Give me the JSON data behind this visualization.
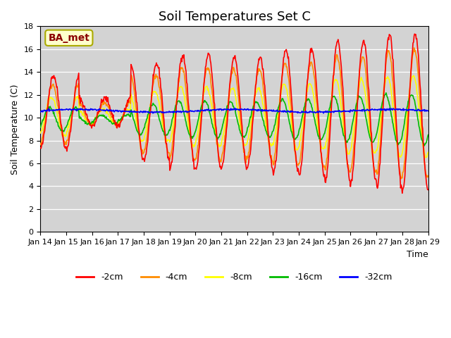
{
  "title": "Soil Temperatures Set C",
  "xlabel": "Time",
  "ylabel": "Soil Temperature (C)",
  "ylim": [
    0,
    18
  ],
  "yticks": [
    0,
    2,
    4,
    6,
    8,
    10,
    12,
    14,
    16,
    18
  ],
  "x_labels": [
    "Jan 14",
    "Jan 15",
    "Jan 16",
    "Jan 17",
    "Jan 18",
    "Jan 19",
    "Jan 20",
    "Jan 21",
    "Jan 22",
    "Jan 23",
    "Jan 24",
    "Jan 25",
    "Jan 26",
    "Jan 27",
    "Jan 28",
    "Jan 29"
  ],
  "legend_labels": [
    "-2cm",
    "-4cm",
    "-8cm",
    "-16cm",
    "-32cm"
  ],
  "legend_colors": [
    "#ff0000",
    "#ff8c00",
    "#ffff00",
    "#00bb00",
    "#0000ff"
  ],
  "annotation_text": "BA_met",
  "axes_bg_color": "#d3d3d3",
  "line_width": 1.2,
  "title_fontsize": 13
}
